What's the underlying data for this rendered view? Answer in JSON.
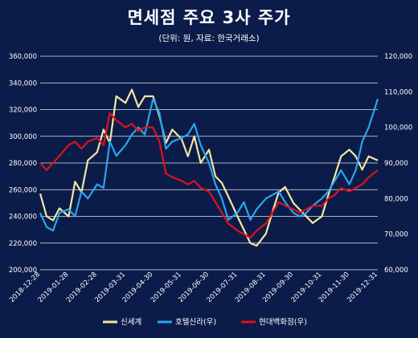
{
  "header": {
    "title": "면세점 주요 3사 주가",
    "subtitle": "(단위: 원, 자료: 한국거래소)"
  },
  "chart_data": {
    "type": "line",
    "title": "면세점 주요 3사 주가",
    "subtitle": "(단위: 원, 자료: 한국거래소)",
    "x_ticks": [
      "2018-12-28",
      "2019-01-28",
      "2019-02-28",
      "2019-03-31",
      "2019-04-30",
      "2019-05-31",
      "2019-06-30",
      "2019-07-31",
      "2019-08-31",
      "2019-09-30",
      "2019-10-31",
      "2019-11-30",
      "2019-12-31"
    ],
    "y_left": {
      "min": 200000,
      "max": 360000,
      "step": 20000,
      "tick_labels": [
        "200,000",
        "220,000",
        "240,000",
        "260,000",
        "280,000",
        "300,000",
        "320,000",
        "340,000",
        "360,000"
      ]
    },
    "y_right": {
      "min": 60000,
      "max": 120000,
      "step": 10000,
      "tick_labels": [
        "60,000",
        "70,000",
        "80,000",
        "90,000",
        "100,000",
        "110,000",
        "120,000"
      ]
    },
    "grid": true,
    "legend_position": "bottom",
    "series": [
      {
        "name": "신세계",
        "axis": "left",
        "color": "#f3e6a0",
        "points": [
          [
            "2018-12-28",
            257000
          ],
          [
            "2019-01-04",
            240000
          ],
          [
            "2019-01-11",
            237000
          ],
          [
            "2019-01-18",
            246000
          ],
          [
            "2019-01-28",
            240000
          ],
          [
            "2019-02-04",
            266000
          ],
          [
            "2019-02-11",
            258000
          ],
          [
            "2019-02-18",
            282000
          ],
          [
            "2019-02-28",
            288000
          ],
          [
            "2019-03-07",
            305000
          ],
          [
            "2019-03-14",
            295000
          ],
          [
            "2019-03-21",
            330000
          ],
          [
            "2019-03-31",
            325000
          ],
          [
            "2019-04-07",
            335000
          ],
          [
            "2019-04-14",
            322000
          ],
          [
            "2019-04-21",
            330000
          ],
          [
            "2019-04-30",
            330000
          ],
          [
            "2019-05-07",
            315000
          ],
          [
            "2019-05-14",
            295000
          ],
          [
            "2019-05-21",
            305000
          ],
          [
            "2019-05-31",
            298000
          ],
          [
            "2019-06-07",
            285000
          ],
          [
            "2019-06-14",
            300000
          ],
          [
            "2019-06-21",
            280000
          ],
          [
            "2019-06-30",
            290000
          ],
          [
            "2019-07-07",
            270000
          ],
          [
            "2019-07-14",
            265000
          ],
          [
            "2019-07-21",
            255000
          ],
          [
            "2019-07-31",
            240000
          ],
          [
            "2019-08-07",
            230000
          ],
          [
            "2019-08-14",
            220000
          ],
          [
            "2019-08-21",
            218000
          ],
          [
            "2019-08-31",
            227000
          ],
          [
            "2019-09-07",
            243000
          ],
          [
            "2019-09-14",
            258000
          ],
          [
            "2019-09-21",
            262000
          ],
          [
            "2019-09-30",
            250000
          ],
          [
            "2019-10-07",
            245000
          ],
          [
            "2019-10-14",
            240000
          ],
          [
            "2019-10-21",
            235000
          ],
          [
            "2019-10-31",
            240000
          ],
          [
            "2019-11-07",
            256000
          ],
          [
            "2019-11-14",
            270000
          ],
          [
            "2019-11-21",
            285000
          ],
          [
            "2019-11-30",
            290000
          ],
          [
            "2019-12-07",
            285000
          ],
          [
            "2019-12-14",
            275000
          ],
          [
            "2019-12-21",
            285000
          ],
          [
            "2019-12-31",
            282000
          ]
        ]
      },
      {
        "name": "호텔신라(우)",
        "axis": "right",
        "color": "#2aa6e8",
        "points": [
          [
            "2018-12-28",
            76000
          ],
          [
            "2019-01-04",
            72000
          ],
          [
            "2019-01-11",
            71000
          ],
          [
            "2019-01-18",
            76000
          ],
          [
            "2019-01-28",
            77000
          ],
          [
            "2019-02-04",
            75000
          ],
          [
            "2019-02-11",
            82000
          ],
          [
            "2019-02-18",
            80000
          ],
          [
            "2019-02-28",
            84000
          ],
          [
            "2019-03-07",
            83000
          ],
          [
            "2019-03-14",
            96000
          ],
          [
            "2019-03-21",
            92000
          ],
          [
            "2019-03-31",
            95000
          ],
          [
            "2019-04-07",
            98000
          ],
          [
            "2019-04-14",
            100000
          ],
          [
            "2019-04-21",
            98000
          ],
          [
            "2019-04-30",
            108000
          ],
          [
            "2019-05-07",
            104000
          ],
          [
            "2019-05-14",
            94000
          ],
          [
            "2019-05-21",
            96000
          ],
          [
            "2019-05-31",
            97000
          ],
          [
            "2019-06-07",
            98000
          ],
          [
            "2019-06-14",
            101000
          ],
          [
            "2019-06-21",
            95000
          ],
          [
            "2019-06-30",
            90000
          ],
          [
            "2019-07-07",
            84000
          ],
          [
            "2019-07-14",
            80000
          ],
          [
            "2019-07-21",
            74000
          ],
          [
            "2019-07-31",
            76000
          ],
          [
            "2019-08-07",
            79000
          ],
          [
            "2019-08-14",
            74000
          ],
          [
            "2019-08-21",
            77000
          ],
          [
            "2019-08-31",
            80000
          ],
          [
            "2019-09-07",
            81000
          ],
          [
            "2019-09-14",
            82000
          ],
          [
            "2019-09-21",
            79000
          ],
          [
            "2019-09-30",
            76000
          ],
          [
            "2019-10-07",
            75000
          ],
          [
            "2019-10-14",
            76000
          ],
          [
            "2019-10-21",
            78000
          ],
          [
            "2019-10-31",
            80000
          ],
          [
            "2019-11-07",
            82000
          ],
          [
            "2019-11-14",
            85000
          ],
          [
            "2019-11-21",
            88000
          ],
          [
            "2019-11-30",
            84000
          ],
          [
            "2019-12-07",
            88000
          ],
          [
            "2019-12-14",
            96000
          ],
          [
            "2019-12-21",
            100000
          ],
          [
            "2019-12-31",
            108000
          ]
        ]
      },
      {
        "name": "현대백화점(우)",
        "axis": "right",
        "color": "#e0101a",
        "points": [
          [
            "2018-12-28",
            90000
          ],
          [
            "2019-01-04",
            88000
          ],
          [
            "2019-01-11",
            90000
          ],
          [
            "2019-01-18",
            92000
          ],
          [
            "2019-01-28",
            95000
          ],
          [
            "2019-02-04",
            96000
          ],
          [
            "2019-02-11",
            94000
          ],
          [
            "2019-02-18",
            96000
          ],
          [
            "2019-02-28",
            97000
          ],
          [
            "2019-03-07",
            95000
          ],
          [
            "2019-03-14",
            104000
          ],
          [
            "2019-03-21",
            102000
          ],
          [
            "2019-03-31",
            100000
          ],
          [
            "2019-04-07",
            101000
          ],
          [
            "2019-04-14",
            99000
          ],
          [
            "2019-04-21",
            100000
          ],
          [
            "2019-04-30",
            100000
          ],
          [
            "2019-05-07",
            96000
          ],
          [
            "2019-05-14",
            87000
          ],
          [
            "2019-05-21",
            86000
          ],
          [
            "2019-05-31",
            85000
          ],
          [
            "2019-06-07",
            84000
          ],
          [
            "2019-06-14",
            85000
          ],
          [
            "2019-06-21",
            83000
          ],
          [
            "2019-06-30",
            82000
          ],
          [
            "2019-07-07",
            79000
          ],
          [
            "2019-07-14",
            76000
          ],
          [
            "2019-07-21",
            73000
          ],
          [
            "2019-07-31",
            71000
          ],
          [
            "2019-08-07",
            70000
          ],
          [
            "2019-08-14",
            69000
          ],
          [
            "2019-08-21",
            71000
          ],
          [
            "2019-08-31",
            73000
          ],
          [
            "2019-09-07",
            76000
          ],
          [
            "2019-09-14",
            79000
          ],
          [
            "2019-09-21",
            78000
          ],
          [
            "2019-09-30",
            77000
          ],
          [
            "2019-10-07",
            76000
          ],
          [
            "2019-10-14",
            77000
          ],
          [
            "2019-10-21",
            78000
          ],
          [
            "2019-10-31",
            78000
          ],
          [
            "2019-11-07",
            80000
          ],
          [
            "2019-11-14",
            81000
          ],
          [
            "2019-11-21",
            83000
          ],
          [
            "2019-11-30",
            82000
          ],
          [
            "2019-12-07",
            83000
          ],
          [
            "2019-12-14",
            84000
          ],
          [
            "2019-12-21",
            86000
          ],
          [
            "2019-12-31",
            88000
          ]
        ]
      }
    ]
  }
}
